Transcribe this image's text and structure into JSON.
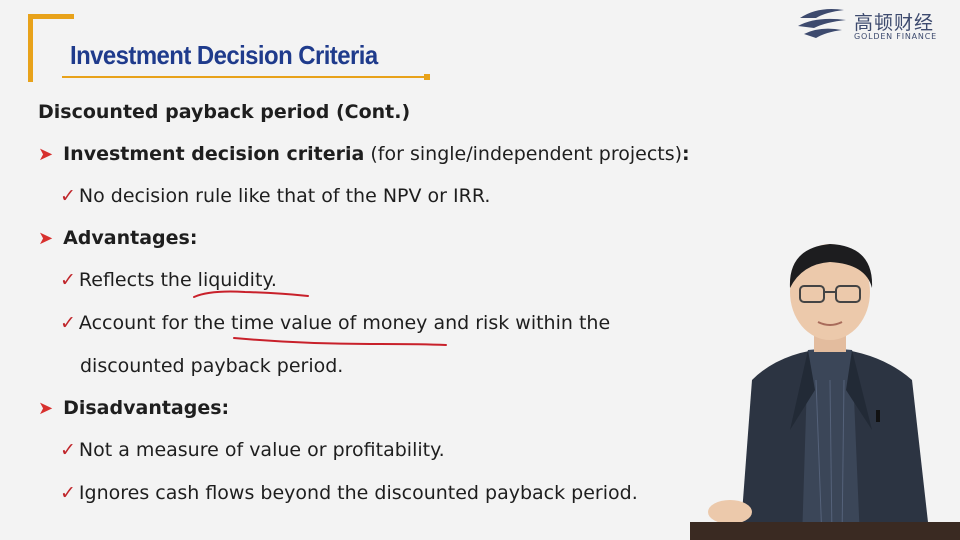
{
  "logo": {
    "cn": "高顿财经",
    "en": "GOLDEN FINANCE"
  },
  "slide": {
    "title": "Investment Decision Criteria",
    "subtitle": "Discounted payback period (Cont.)",
    "sections": [
      {
        "bold": "Investment decision criteria",
        "normal": " (for single/independent projects)",
        "suffix": ":"
      },
      {
        "bold": "Advantages:"
      },
      {
        "bold": "Disadvantages:"
      }
    ],
    "points": [
      "No decision rule like that of the NPV or IRR.",
      "Reflects the liquidity.",
      "Account for the time value of money and risk within the",
      "discounted payback period.",
      "Not a measure of value or profitability.",
      "Ignores cash flows beyond the discounted payback period."
    ]
  },
  "colors": {
    "title": "#1f3b8c",
    "accent": "#e8a21a",
    "arrow": "#d7302e",
    "check": "#c0262b",
    "annotation": "#c8202a"
  }
}
